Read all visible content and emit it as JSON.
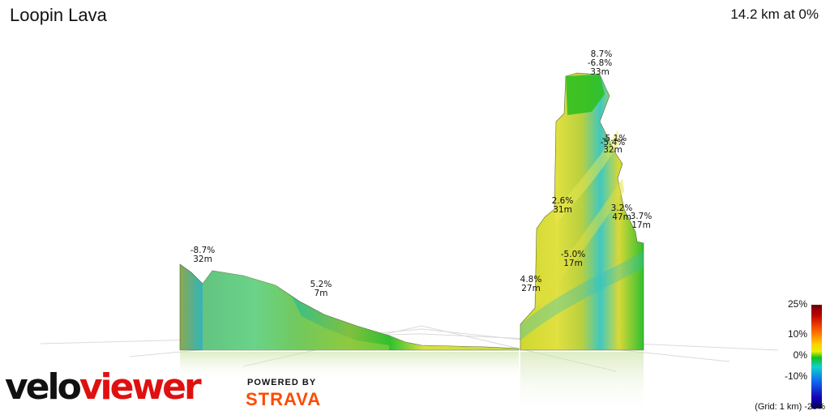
{
  "route": {
    "title": "Loopin Lava",
    "summary": "14.2 km at 0%"
  },
  "segment_labels": [
    {
      "grade": "-8.7%",
      "dist": "32m"
    },
    {
      "grade": "5.2%",
      "dist": "7m"
    },
    {
      "grade": "8.7%",
      "dist": ""
    },
    {
      "grade": "-6.8%",
      "dist": "33m"
    },
    {
      "grade": "-5.1%",
      "dist": ""
    },
    {
      "grade": "-5.4%",
      "dist": "32m"
    },
    {
      "grade": "2.6%",
      "dist": "31m"
    },
    {
      "grade": "3.2%",
      "dist": "47m"
    },
    {
      "grade": "3.7%",
      "dist": "17m"
    },
    {
      "grade": "-5.0%",
      "dist": "17m"
    },
    {
      "grade": "4.8%",
      "dist": "27m"
    }
  ],
  "legend": {
    "ticks": [
      "25%",
      "10%",
      "0%",
      "-10%"
    ],
    "grid_note": "(Grid: 1 km) -25%",
    "colors": {
      "steep_up": "#6b0000",
      "flat": "#10c020",
      "steep_down": "#000070"
    }
  },
  "branding": {
    "logo_a": "velo",
    "logo_b": "viewer",
    "powered": "POWERED BY",
    "strava": "STRAVA"
  }
}
